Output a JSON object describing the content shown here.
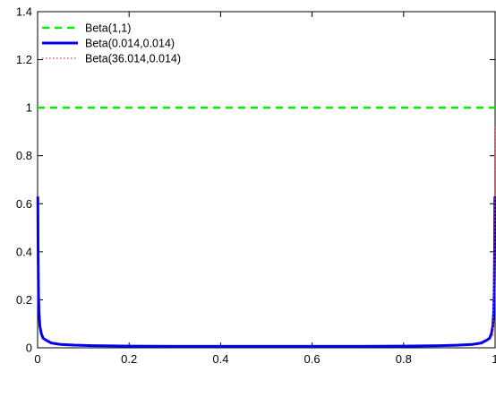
{
  "chart_data": {
    "type": "line",
    "title": "",
    "xlabel": "",
    "ylabel": "",
    "xlim": [
      0,
      1
    ],
    "ylim": [
      0,
      1.4
    ],
    "grid": false,
    "legend_position": "top-left",
    "x_ticks": [
      "0",
      "0.2",
      "0.4",
      "0.6",
      "0.8",
      "1"
    ],
    "y_ticks": [
      "0",
      "0.2",
      "0.4",
      "0.6",
      "0.8",
      "1",
      "1.2",
      "1.4"
    ],
    "series": [
      {
        "name": "Beta(1,1)",
        "color": "#00ee00",
        "style": "dashed",
        "x": [
          0,
          1
        ],
        "y": [
          1,
          1
        ]
      },
      {
        "name": "Beta(0.014,0.014)",
        "color": "#0000ee",
        "style": "solid",
        "x": [
          0.0005,
          0.001,
          0.002,
          0.003,
          0.005,
          0.008,
          0.012,
          0.02,
          0.03,
          0.05,
          0.08,
          0.12,
          0.2,
          0.3,
          0.4,
          0.5,
          0.6,
          0.7,
          0.8,
          0.88,
          0.92,
          0.95,
          0.97,
          0.98,
          0.988,
          0.992,
          0.995,
          0.997,
          0.998,
          0.999,
          0.9995
        ],
        "y": [
          0.63,
          0.42,
          0.22,
          0.15,
          0.09,
          0.06,
          0.04,
          0.03,
          0.02,
          0.014,
          0.011,
          0.009,
          0.007,
          0.006,
          0.006,
          0.006,
          0.006,
          0.006,
          0.007,
          0.009,
          0.011,
          0.014,
          0.02,
          0.03,
          0.04,
          0.06,
          0.09,
          0.15,
          0.22,
          0.42,
          0.63
        ]
      },
      {
        "name": "Beta(36.014,0.014)",
        "color": "#ff3333",
        "style": "dotted",
        "x": [
          0.995,
          0.997,
          0.998,
          0.999,
          0.9995
        ],
        "y": [
          0.05,
          0.15,
          0.3,
          0.55,
          0.92
        ]
      }
    ]
  }
}
